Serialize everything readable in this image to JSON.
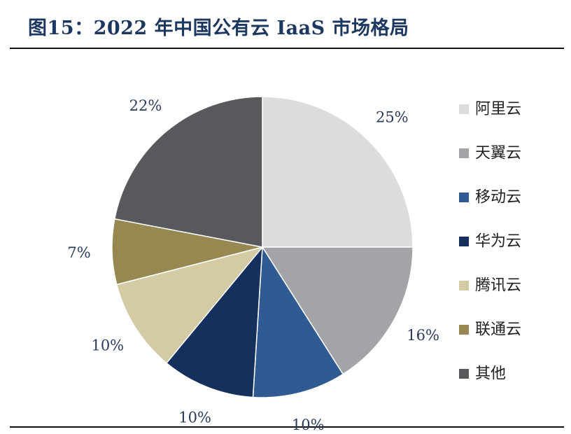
{
  "figure": {
    "title": "图15：2022 年中国公有云 IaaS 市场格局"
  },
  "chart_data": {
    "type": "pie",
    "title": "",
    "start_angle_deg": 0,
    "direction": "clockwise",
    "legend_position": "right",
    "slices": [
      {
        "name": "阿里云",
        "value": 25,
        "label": "25%",
        "color": "#dcdcdf"
      },
      {
        "name": "天翼云",
        "value": 16,
        "label": "16%",
        "color": "#a3a4a8"
      },
      {
        "name": "移动云",
        "value": 10,
        "label": "10%",
        "color": "#2f5a92"
      },
      {
        "name": "华为云",
        "value": 10,
        "label": "10%",
        "color": "#15305c"
      },
      {
        "name": "腾讯云",
        "value": 10,
        "label": "10%",
        "color": "#d3cba4"
      },
      {
        "name": "联通云",
        "value": 7,
        "label": "7%",
        "color": "#968850"
      },
      {
        "name": "其他",
        "value": 22,
        "label": "22%",
        "color": "#58595d"
      }
    ]
  }
}
